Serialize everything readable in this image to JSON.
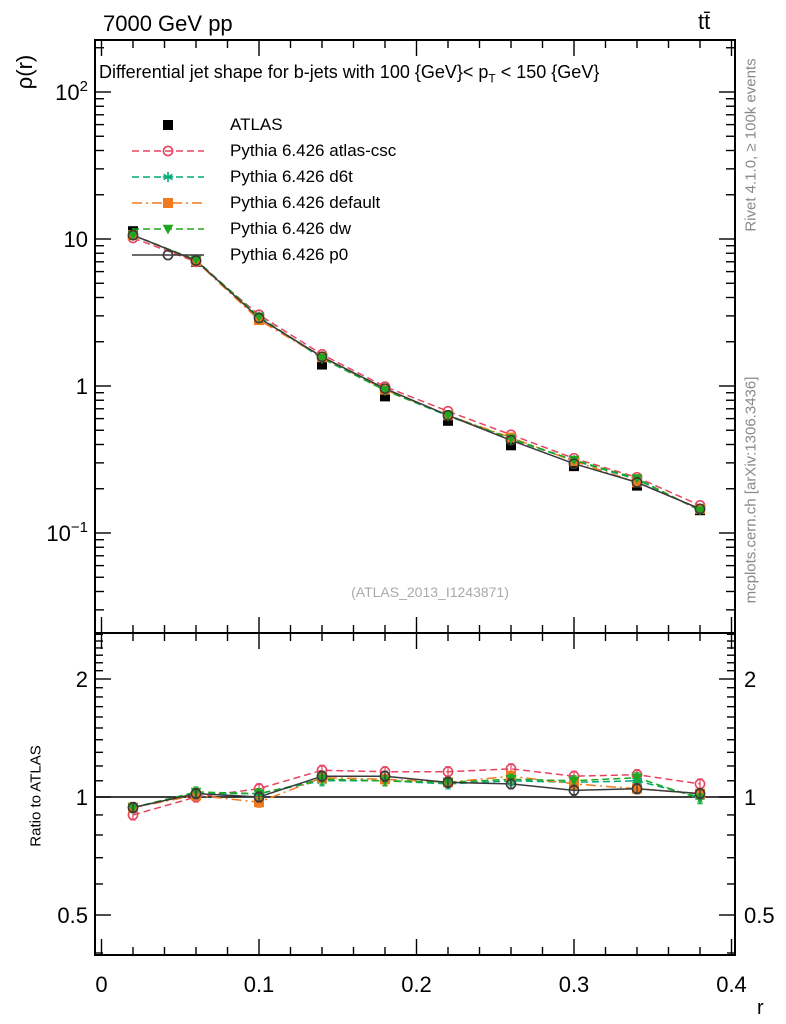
{
  "header": {
    "left": "7000 GeV pp",
    "right": "tt̄"
  },
  "titles": {
    "main_pre": "Differential jet shape for b-jets with 100 {GeV}< p",
    "main_sub": "T",
    "main_post": " < 150 {GeV}",
    "y_axis": "ρ(r)",
    "ratio_y_axis": "Ratio to ATLAS",
    "x_axis": "r"
  },
  "watermark": "(ATLAS_2013_I1243871)",
  "side_notes": {
    "top": "Rivet 4.1.0, ≥ 100k events",
    "bottom": "mcplots.cern.ch [arXiv:1306.3436]"
  },
  "chart_data": {
    "type": "line",
    "title": "Differential jet shape for b-jets with 100 {GeV}< pT < 150 {GeV}",
    "xlabel": "r",
    "ylabel": "ρ(r)",
    "ratio_ylabel": "Ratio to ATLAS",
    "x": [
      0.02,
      0.06,
      0.1,
      0.14,
      0.18,
      0.22,
      0.26,
      0.3,
      0.34,
      0.38
    ],
    "xlim": [
      -0.004,
      0.4025
    ],
    "ylim_main": [
      0.021,
      226
    ],
    "ylim_ratio": [
      0.395,
      2.62
    ],
    "y_scale": "log",
    "grid": false,
    "legend_position": "top-left-inside",
    "x_ticks": [
      {
        "v": 0.0,
        "label": "0"
      },
      {
        "v": 0.1,
        "label": "0.1"
      },
      {
        "v": 0.2,
        "label": "0.2"
      },
      {
        "v": 0.3,
        "label": "0.3"
      },
      {
        "v": 0.4,
        "label": "0.4"
      }
    ],
    "y_ticks_main": [
      {
        "v": 100,
        "base": "10",
        "exp": "2"
      },
      {
        "v": 10,
        "base": "10",
        "exp": ""
      },
      {
        "v": 1,
        "base": "1",
        "exp": ""
      },
      {
        "v": 0.1,
        "base": "10",
        "exp": "−1"
      }
    ],
    "ratio_ticks": [
      {
        "v": 2,
        "label": "2"
      },
      {
        "v": 1,
        "label": "1"
      },
      {
        "v": 0.5,
        "label": "0.5"
      }
    ],
    "series": [
      {
        "name": "ATLAS",
        "kind": "data",
        "color": "#000000",
        "line": "none",
        "marker": "filled-square",
        "values": [
          11.3,
          7.0,
          2.9,
          1.4,
          0.85,
          0.58,
          0.395,
          0.285,
          0.21,
          0.143
        ]
      },
      {
        "name": "Pythia 6.426 atlas-csc",
        "kind": "mc",
        "color": "#e84360",
        "line": "dashed",
        "marker": "open-circle",
        "values": [
          10.17,
          7.0,
          3.05,
          1.64,
          0.99,
          0.673,
          0.466,
          0.322,
          0.239,
          0.154
        ],
        "ratio": [
          0.9,
          1.0,
          1.05,
          1.17,
          1.16,
          1.16,
          1.18,
          1.13,
          1.14,
          1.08
        ]
      },
      {
        "name": "Pythia 6.426 d6t",
        "kind": "mc",
        "color": "#00aa77",
        "line": "dashed",
        "marker": "asterisk",
        "values": [
          10.62,
          7.14,
          2.96,
          1.54,
          0.935,
          0.626,
          0.435,
          0.311,
          0.231,
          0.143
        ],
        "ratio": [
          0.94,
          1.02,
          1.02,
          1.1,
          1.1,
          1.08,
          1.1,
          1.09,
          1.1,
          1.0
        ]
      },
      {
        "name": "Pythia 6.426 default",
        "kind": "mc",
        "color": "#f27a1e",
        "line": "dashdot",
        "marker": "filled-square",
        "values": [
          10.62,
          7.07,
          2.81,
          1.57,
          0.944,
          0.632,
          0.446,
          0.308,
          0.221,
          0.146
        ],
        "ratio": [
          0.94,
          1.01,
          0.97,
          1.12,
          1.11,
          1.09,
          1.13,
          1.08,
          1.05,
          1.02
        ]
      },
      {
        "name": "Pythia 6.426 dw",
        "kind": "mc",
        "color": "#1fa81f",
        "line": "dashed",
        "marker": "triangle-down",
        "values": [
          10.62,
          7.21,
          2.96,
          1.55,
          0.935,
          0.632,
          0.438,
          0.314,
          0.235,
          0.142
        ],
        "ratio": [
          0.94,
          1.03,
          1.02,
          1.11,
          1.1,
          1.09,
          1.11,
          1.1,
          1.12,
          0.99
        ]
      },
      {
        "name": "Pythia 6.426 p0",
        "kind": "mc",
        "color": "#3a3a3a",
        "line": "solid",
        "marker": "open-circle",
        "values": [
          10.62,
          7.14,
          2.9,
          1.58,
          0.96,
          0.632,
          0.427,
          0.296,
          0.221,
          0.146
        ],
        "ratio": [
          0.94,
          1.02,
          1.0,
          1.13,
          1.13,
          1.09,
          1.08,
          1.04,
          1.05,
          1.02
        ]
      }
    ]
  }
}
